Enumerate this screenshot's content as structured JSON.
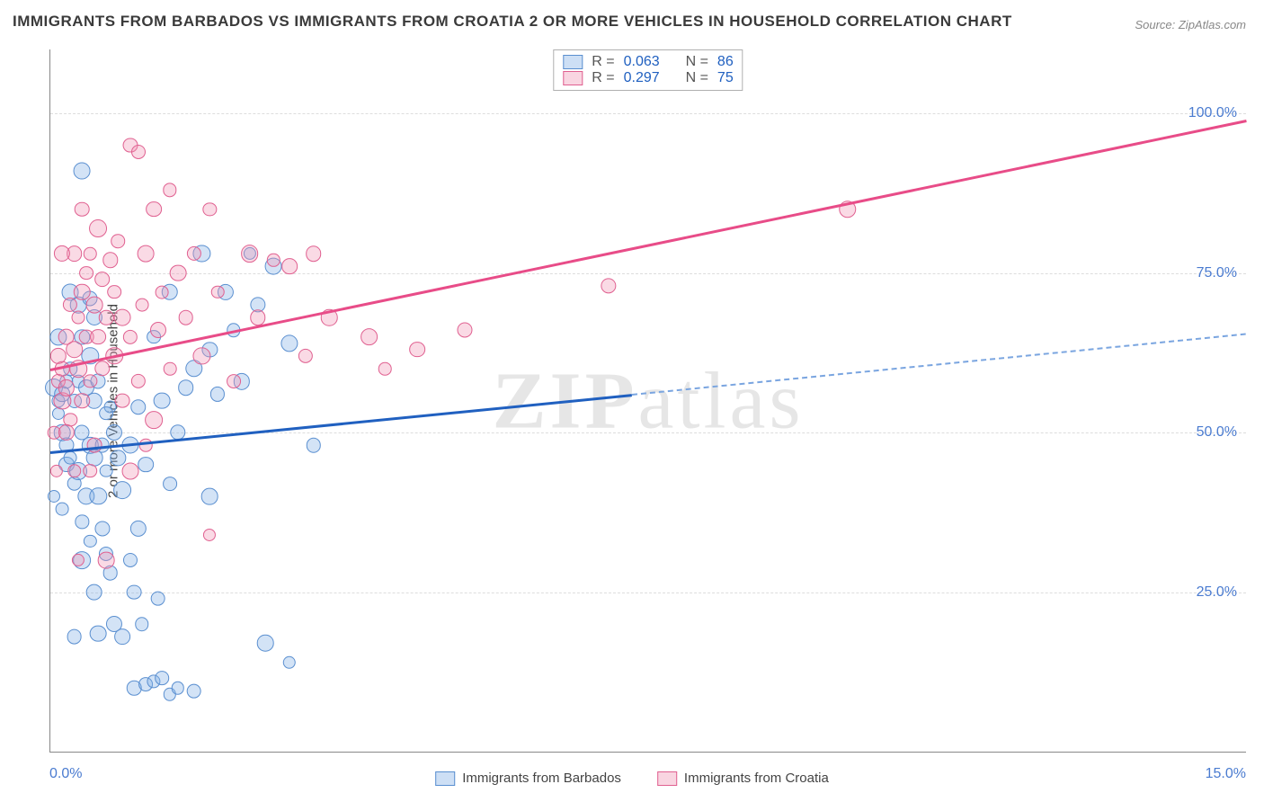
{
  "title": "IMMIGRANTS FROM BARBADOS VS IMMIGRANTS FROM CROATIA 2 OR MORE VEHICLES IN HOUSEHOLD CORRELATION CHART",
  "source": "Source: ZipAtlas.com",
  "y_axis_label": "2 or more Vehicles in Household",
  "watermark": "ZIPatlas",
  "chart": {
    "type": "scatter",
    "xlim": [
      0,
      15
    ],
    "ylim": [
      0,
      110
    ],
    "x_ticks": [
      {
        "v": 0,
        "label": "0.0%"
      },
      {
        "v": 15,
        "label": "15.0%"
      }
    ],
    "y_ticks": [
      {
        "v": 25,
        "label": "25.0%"
      },
      {
        "v": 50,
        "label": "50.0%"
      },
      {
        "v": 75,
        "label": "75.0%"
      },
      {
        "v": 100,
        "label": "100.0%"
      }
    ],
    "background_color": "#ffffff",
    "grid_color": "#dddddd",
    "axis_color": "#888888",
    "tick_label_color": "#4a7bd0",
    "tick_fontsize": 16,
    "title_fontsize": 17,
    "label_fontsize": 15
  },
  "series": [
    {
      "name": "Immigrants from Barbados",
      "key": "barbados",
      "color_fill": "rgba(130,175,230,0.35)",
      "color_stroke": "#5a8fd0",
      "marker_size": 16,
      "line_color": "#2060c0",
      "line_width": 3,
      "R": "0.063",
      "N": "86",
      "trend": {
        "x1": 0,
        "y1": 47,
        "x_solid_end": 7.3,
        "y_solid_end": 56,
        "x2": 15,
        "y2": 65.5
      },
      "points": [
        [
          0.05,
          57
        ],
        [
          0.1,
          55
        ],
        [
          0.1,
          53
        ],
        [
          0.15,
          56
        ],
        [
          0.15,
          50
        ],
        [
          0.2,
          58
        ],
        [
          0.2,
          48
        ],
        [
          0.2,
          45
        ],
        [
          0.25,
          60
        ],
        [
          0.25,
          46
        ],
        [
          0.3,
          55
        ],
        [
          0.3,
          42
        ],
        [
          0.35,
          70
        ],
        [
          0.35,
          58
        ],
        [
          0.35,
          44
        ],
        [
          0.4,
          91
        ],
        [
          0.4,
          65
        ],
        [
          0.4,
          50
        ],
        [
          0.4,
          36
        ],
        [
          0.45,
          57
        ],
        [
          0.45,
          40
        ],
        [
          0.5,
          71
        ],
        [
          0.5,
          62
        ],
        [
          0.5,
          48
        ],
        [
          0.5,
          33
        ],
        [
          0.55,
          68
        ],
        [
          0.55,
          55
        ],
        [
          0.55,
          25
        ],
        [
          0.6,
          58
        ],
        [
          0.6,
          40
        ],
        [
          0.6,
          18.5
        ],
        [
          0.65,
          48
        ],
        [
          0.65,
          35
        ],
        [
          0.7,
          31
        ],
        [
          0.7,
          44
        ],
        [
          0.75,
          54
        ],
        [
          0.75,
          28
        ],
        [
          0.8,
          50
        ],
        [
          0.8,
          20
        ],
        [
          0.85,
          46
        ],
        [
          0.9,
          18
        ],
        [
          0.9,
          41
        ],
        [
          1.0,
          30
        ],
        [
          1.0,
          48
        ],
        [
          1.05,
          25
        ],
        [
          1.05,
          10
        ],
        [
          1.1,
          54
        ],
        [
          1.1,
          35
        ],
        [
          1.15,
          20
        ],
        [
          1.2,
          10.5
        ],
        [
          1.2,
          45
        ],
        [
          1.3,
          11
        ],
        [
          1.3,
          65
        ],
        [
          1.35,
          24
        ],
        [
          1.4,
          55
        ],
        [
          1.4,
          11.5
        ],
        [
          1.5,
          72
        ],
        [
          1.5,
          42
        ],
        [
          1.5,
          9
        ],
        [
          1.6,
          10
        ],
        [
          1.6,
          50
        ],
        [
          1.7,
          57
        ],
        [
          1.8,
          60
        ],
        [
          1.8,
          9.5
        ],
        [
          1.9,
          78
        ],
        [
          2.0,
          63
        ],
        [
          2.0,
          40
        ],
        [
          2.1,
          56
        ],
        [
          2.2,
          72
        ],
        [
          2.3,
          66
        ],
        [
          2.4,
          58
        ],
        [
          2.5,
          78
        ],
        [
          2.6,
          70
        ],
        [
          2.8,
          76
        ],
        [
          3.0,
          64
        ],
        [
          3.0,
          14
        ],
        [
          2.7,
          17
        ],
        [
          3.3,
          48
        ],
        [
          0.3,
          18
        ],
        [
          0.05,
          40
        ],
        [
          0.1,
          65
        ],
        [
          0.25,
          72
        ],
        [
          0.15,
          38
        ],
        [
          0.4,
          30
        ],
        [
          0.55,
          46
        ],
        [
          0.7,
          53
        ]
      ]
    },
    {
      "name": "Immigrants from Croatia",
      "key": "croatia",
      "color_fill": "rgba(240,150,180,0.35)",
      "color_stroke": "#e06090",
      "marker_size": 16,
      "line_color": "#e84c88",
      "line_width": 3,
      "R": "0.297",
      "N": "75",
      "trend": {
        "x1": 0,
        "y1": 60,
        "x2": 15,
        "y2": 99
      },
      "points": [
        [
          0.1,
          58
        ],
        [
          0.1,
          62
        ],
        [
          0.15,
          60
        ],
        [
          0.15,
          55
        ],
        [
          0.2,
          65
        ],
        [
          0.2,
          57
        ],
        [
          0.25,
          70
        ],
        [
          0.25,
          52
        ],
        [
          0.3,
          63
        ],
        [
          0.3,
          78
        ],
        [
          0.35,
          68
        ],
        [
          0.35,
          60
        ],
        [
          0.4,
          72
        ],
        [
          0.4,
          55
        ],
        [
          0.45,
          75
        ],
        [
          0.45,
          65
        ],
        [
          0.5,
          78
        ],
        [
          0.5,
          58
        ],
        [
          0.55,
          70
        ],
        [
          0.55,
          48
        ],
        [
          0.6,
          65
        ],
        [
          0.6,
          82
        ],
        [
          0.65,
          60
        ],
        [
          0.65,
          74
        ],
        [
          0.7,
          68
        ],
        [
          0.7,
          30
        ],
        [
          0.75,
          77
        ],
        [
          0.8,
          62
        ],
        [
          0.8,
          72
        ],
        [
          0.85,
          80
        ],
        [
          0.9,
          55
        ],
        [
          0.9,
          68
        ],
        [
          1.0,
          95
        ],
        [
          1.0,
          65
        ],
        [
          1.1,
          58
        ],
        [
          1.1,
          94
        ],
        [
          1.15,
          70
        ],
        [
          1.2,
          78
        ],
        [
          1.2,
          48
        ],
        [
          1.3,
          85
        ],
        [
          1.35,
          66
        ],
        [
          1.4,
          72
        ],
        [
          1.5,
          88
        ],
        [
          1.5,
          60
        ],
        [
          1.6,
          75
        ],
        [
          1.7,
          68
        ],
        [
          1.8,
          78
        ],
        [
          1.9,
          62
        ],
        [
          2.0,
          85
        ],
        [
          2.0,
          34
        ],
        [
          2.1,
          72
        ],
        [
          2.3,
          58
        ],
        [
          2.5,
          78
        ],
        [
          2.6,
          68
        ],
        [
          2.8,
          77
        ],
        [
          3.0,
          76
        ],
        [
          3.2,
          62
        ],
        [
          3.3,
          78
        ],
        [
          3.5,
          68
        ],
        [
          4.0,
          65
        ],
        [
          4.2,
          60
        ],
        [
          4.6,
          63
        ],
        [
          5.2,
          66
        ],
        [
          7.0,
          73
        ],
        [
          10.0,
          85
        ],
        [
          0.05,
          50
        ],
        [
          0.08,
          44
        ],
        [
          0.2,
          50
        ],
        [
          0.3,
          44
        ],
        [
          0.35,
          30
        ],
        [
          0.5,
          44
        ],
        [
          1.0,
          44
        ],
        [
          1.3,
          52
        ],
        [
          0.15,
          78
        ],
        [
          0.4,
          85
        ]
      ]
    }
  ],
  "stats_legend_labels": {
    "R": "R =",
    "N": "N ="
  },
  "bottom_legend": [
    {
      "swatch": "blue",
      "label": "Immigrants from Barbados"
    },
    {
      "swatch": "pink",
      "label": "Immigrants from Croatia"
    }
  ]
}
